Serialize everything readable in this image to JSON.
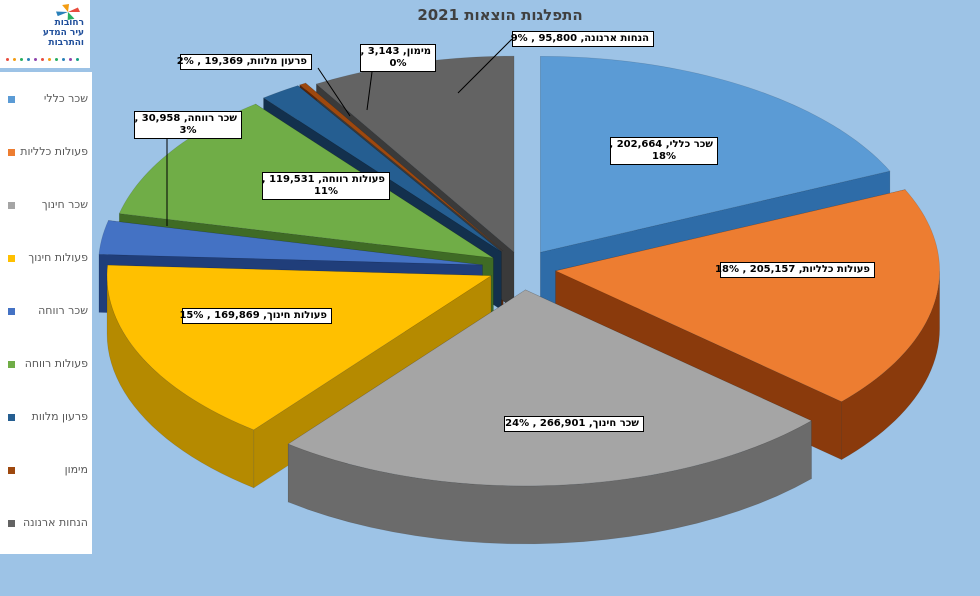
{
  "logo": {
    "line1": "רחובות",
    "line2": "עיר המדע",
    "line3": "והתרבות"
  },
  "chart_data": {
    "type": "pie",
    "title": "התפלגות הוצאות 2021",
    "three_d": true,
    "exploded": true,
    "legend_position": "left",
    "categories": [
      "שכר כללי",
      "פעולות כלליות",
      "שכר חינוך",
      "פעולות חינוך",
      "שכר רווחה",
      "פעולות רווחה",
      "פרעון מלוות",
      "מימון",
      "הנחות ארנונה"
    ],
    "values": [
      202664,
      205157,
      266901,
      169869,
      30958,
      119531,
      19369,
      3143,
      95800
    ],
    "percents": [
      "18%",
      "18%",
      "24%",
      "15%",
      "3%",
      "11%",
      "2%",
      "0%",
      "9%"
    ],
    "value_labels": [
      "202,664",
      "205,157",
      "266,901",
      "169,869",
      "30,958",
      "119,531",
      "19,369",
      "3,143",
      "95,800"
    ],
    "colors": [
      "#5b9bd5",
      "#ed7d31",
      "#a5a5a5",
      "#ffc000",
      "#4472c4",
      "#70ad47",
      "#255e91",
      "#9e480e",
      "#636363"
    ],
    "side_colors": [
      "#2e6ca8",
      "#8a3a0c",
      "#6b6b6b",
      "#b58a00",
      "#203e7a",
      "#3f6b25",
      "#13304d",
      "#5a2508",
      "#3a3a3a"
    ]
  }
}
